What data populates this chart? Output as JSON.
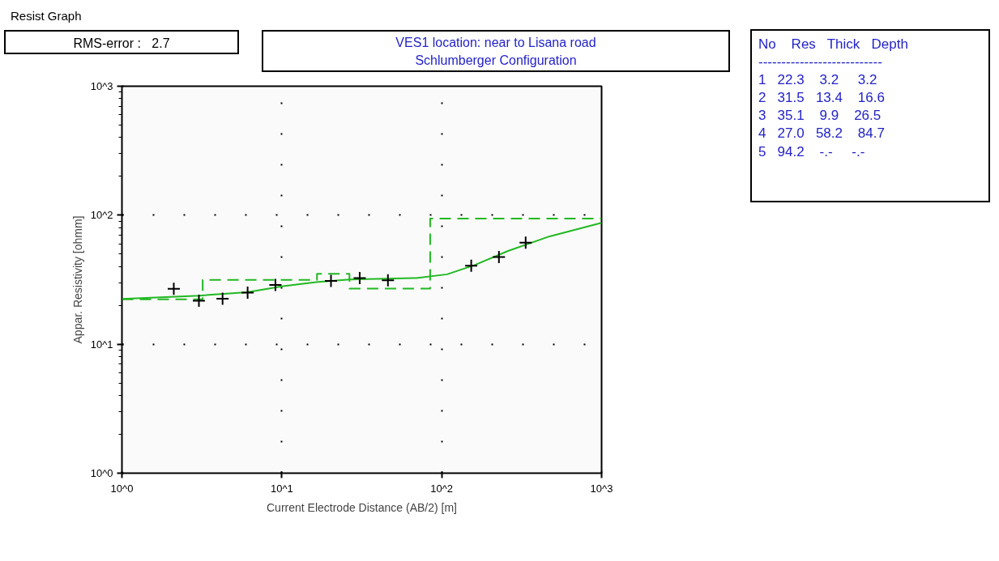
{
  "chart_data": {
    "type": "line",
    "title": "VES1 location: near to Lisana road",
    "subtitle": "Schlumberger Configuration",
    "xlabel": "Current Electrode Distance (AB/2) [m]",
    "ylabel": "Appar. Resistivity [ohmm]",
    "annotations": [
      "Resist Graph",
      "RMS-error :   2.7",
      "No    Res   Thick   Depth",
      "---------------------------",
      "1   22.3    3.2     3.2",
      "2   31.5   13.4    16.6",
      "3   35.1    9.9    26.5",
      "4   27.0   58.2    84.7",
      "5   94.2    -.-     -.-"
    ],
    "log": "xy",
    "grid": true,
    "xlim": [
      1,
      1000
    ],
    "ylim": [
      1,
      1000
    ],
    "xticks": [
      {
        "value": 1,
        "label": "10^0"
      },
      {
        "value": 10,
        "label": "10^1"
      },
      {
        "value": 100,
        "label": "10^2"
      },
      {
        "value": 1000,
        "label": "10^3"
      }
    ],
    "yticks": [
      {
        "value": 1,
        "label": "10^0"
      },
      {
        "value": 10,
        "label": "10^1"
      },
      {
        "value": 100,
        "label": "10^2"
      },
      {
        "value": 1000,
        "label": "10^3"
      }
    ],
    "series": [
      {
        "type": "step",
        "color": "#22b822",
        "line_style": "dashed",
        "x": [
          1,
          3.2,
          16.6,
          26.5,
          84.7,
          1000
        ],
        "values": [
          22.3,
          31.5,
          35.1,
          27.0,
          94.2,
          94.2
        ]
      },
      {
        "color": "#22b822",
        "line_style": "solid",
        "x": [
          1,
          3.05,
          6.06,
          10.2,
          16.4,
          26.5,
          69.4,
          108,
          161,
          260,
          474,
          1000
        ],
        "values": [
          22.4,
          23.8,
          25.3,
          28.2,
          30.3,
          31.7,
          32.6,
          34.8,
          41.1,
          52.8,
          68.6,
          87.3
        ]
      },
      {
        "type": "scatter",
        "color": "#000000",
        "marker": "cross",
        "x": [
          2.11,
          3.03,
          4.26,
          6.11,
          9.12,
          20.3,
          30.7,
          46.1,
          153,
          228,
          335
        ],
        "values": [
          26.9,
          21.7,
          22.5,
          25.1,
          28.8,
          31.0,
          32.6,
          31.3,
          40.6,
          47.4,
          61.2
        ]
      }
    ]
  }
}
